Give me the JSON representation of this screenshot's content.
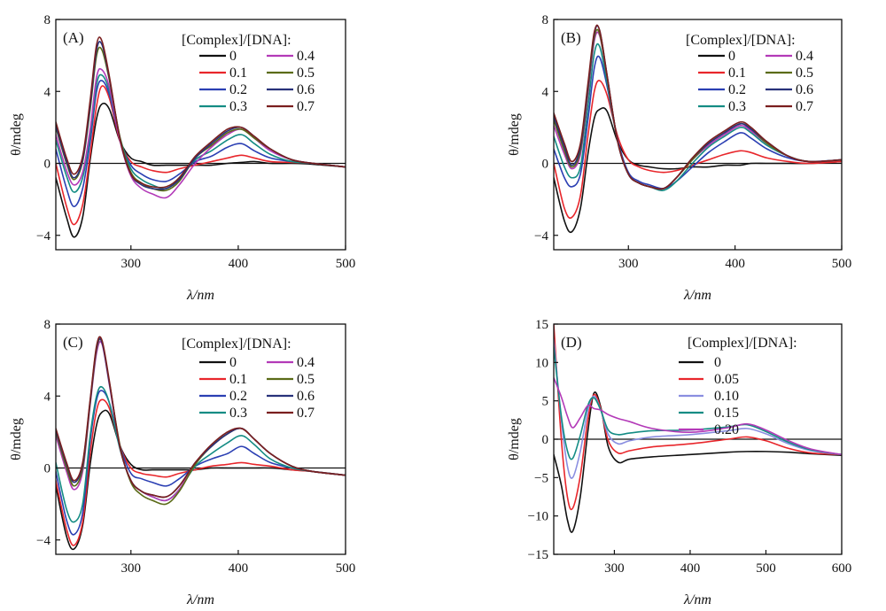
{
  "figure": {
    "ylabel": "θ/mdeg",
    "xlabel": "λ/nm"
  },
  "colors": {
    "0": "#111111",
    "0.1": "#e8262b",
    "0.2": "#2b3fb3",
    "0.3": "#148c84",
    "0.4": "#b33ab8",
    "0.5": "#5b6b18",
    "0.6": "#28327a",
    "0.7": "#7a1f1f",
    "0.05": "#e8262b",
    "0.10": "#8a8ee0",
    "0.15": "#148c84",
    "0.20": "#b33ab8"
  },
  "chart_data": [
    {
      "type": "line",
      "panel_label": "(A)",
      "legend_title": "[Complex]/[DNA]:",
      "xlabel": "λ/nm",
      "ylabel": "θ/mdeg",
      "xlim": [
        230,
        500
      ],
      "ylim": [
        -4.8,
        8
      ],
      "xticks": [
        "300",
        "400",
        "500"
      ],
      "xtick_values": [
        300,
        400,
        500
      ],
      "yticks": [
        "−4",
        "0",
        "4",
        "8"
      ],
      "ytick_values": [
        -4,
        0,
        4,
        8
      ],
      "x": [
        230,
        240,
        247,
        255,
        262,
        268,
        273,
        280,
        290,
        300,
        310,
        320,
        333,
        345,
        360,
        375,
        390,
        403,
        415,
        430,
        450,
        470,
        500
      ],
      "series": [
        {
          "name": "0",
          "values": [
            -0.8,
            -3.0,
            -4.1,
            -3.0,
            0.2,
            2.5,
            3.3,
            3.0,
            1.2,
            0.3,
            0.1,
            -0.1,
            -0.1,
            -0.1,
            -0.1,
            -0.1,
            0.0,
            0.05,
            0.1,
            0.0,
            0.0,
            -0.05,
            -0.2
          ]
        },
        {
          "name": "0.1",
          "values": [
            0.0,
            -2.4,
            -3.4,
            -2.3,
            0.5,
            3.2,
            4.3,
            3.6,
            1.2,
            0.1,
            -0.2,
            -0.4,
            -0.5,
            -0.3,
            -0.1,
            0.1,
            0.3,
            0.45,
            0.3,
            0.1,
            0.05,
            0.0,
            -0.2
          ]
        },
        {
          "name": "0.2",
          "values": [
            0.8,
            -1.4,
            -2.4,
            -1.4,
            1.2,
            4.0,
            4.6,
            3.8,
            1.3,
            -0.1,
            -0.6,
            -0.9,
            -1.0,
            -0.6,
            0.1,
            0.4,
            0.9,
            1.1,
            0.7,
            0.3,
            0.1,
            0.0,
            -0.2
          ]
        },
        {
          "name": "0.3",
          "values": [
            1.3,
            -0.7,
            -1.6,
            -0.8,
            1.6,
            4.4,
            4.9,
            4.0,
            1.4,
            -0.3,
            -0.9,
            -1.2,
            -1.4,
            -0.8,
            0.2,
            0.7,
            1.3,
            1.6,
            1.1,
            0.5,
            0.1,
            0.0,
            -0.2
          ]
        },
        {
          "name": "0.4",
          "values": [
            1.6,
            -0.4,
            -1.2,
            -0.5,
            1.9,
            4.8,
            5.2,
            4.2,
            1.2,
            -0.7,
            -1.4,
            -1.7,
            -1.9,
            -1.2,
            0.0,
            0.9,
            1.6,
            1.9,
            1.4,
            0.7,
            0.2,
            0.0,
            -0.2
          ]
        },
        {
          "name": "0.5",
          "values": [
            2.0,
            0.0,
            -0.9,
            0.1,
            3.0,
            6.0,
            6.3,
            4.6,
            1.4,
            -0.5,
            -1.1,
            -1.4,
            -1.5,
            -1.0,
            0.3,
            1.0,
            1.7,
            1.9,
            1.4,
            0.8,
            0.2,
            0.0,
            -0.2
          ]
        },
        {
          "name": "0.6",
          "values": [
            2.1,
            0.1,
            -0.8,
            0.2,
            3.2,
            6.3,
            6.6,
            4.7,
            1.3,
            -0.6,
            -1.2,
            -1.4,
            -1.4,
            -0.9,
            0.3,
            1.1,
            1.8,
            2.0,
            1.5,
            0.8,
            0.2,
            0.0,
            -0.2
          ]
        },
        {
          "name": "0.7",
          "values": [
            2.3,
            0.3,
            -0.6,
            0.4,
            3.5,
            6.6,
            6.8,
            4.8,
            1.3,
            -0.6,
            -1.1,
            -1.3,
            -1.3,
            -0.8,
            0.4,
            1.2,
            1.9,
            2.0,
            1.5,
            0.8,
            0.2,
            0.0,
            -0.2
          ]
        }
      ]
    },
    {
      "type": "line",
      "panel_label": "(B)",
      "legend_title": "[Complex]/[DNA]:",
      "xlabel": "λ/nm",
      "ylabel": "θ/mdeg",
      "xlim": [
        230,
        500
      ],
      "ylim": [
        -4.8,
        8
      ],
      "xticks": [
        "300",
        "400",
        "500"
      ],
      "xtick_values": [
        300,
        400,
        500
      ],
      "yticks": [
        "−4",
        "0",
        "4",
        "8"
      ],
      "ytick_values": [
        -4,
        0,
        4,
        8
      ],
      "x": [
        230,
        240,
        247,
        255,
        262,
        268,
        273,
        280,
        290,
        300,
        310,
        320,
        333,
        345,
        360,
        375,
        390,
        405,
        415,
        430,
        450,
        470,
        500
      ],
      "series": [
        {
          "name": "0",
          "values": [
            -0.8,
            -3.2,
            -3.8,
            -2.5,
            0.5,
            2.5,
            3.0,
            2.9,
            1.2,
            0.2,
            -0.1,
            -0.2,
            -0.3,
            -0.3,
            -0.2,
            -0.2,
            -0.1,
            -0.1,
            0.0,
            0.0,
            0.0,
            0.0,
            0.1
          ]
        },
        {
          "name": "0.1",
          "values": [
            0.0,
            -2.5,
            -3.0,
            -1.8,
            1.5,
            4.0,
            4.6,
            3.8,
            1.5,
            0.2,
            -0.2,
            -0.4,
            -0.5,
            -0.4,
            -0.1,
            0.2,
            0.5,
            0.7,
            0.6,
            0.3,
            0.1,
            0.0,
            0.1
          ]
        },
        {
          "name": "0.2",
          "values": [
            0.8,
            -0.8,
            -1.3,
            -0.6,
            2.4,
            5.3,
            5.9,
            4.3,
            1.3,
            -0.5,
            -1.0,
            -1.2,
            -1.4,
            -1.0,
            -0.2,
            0.6,
            1.2,
            1.7,
            1.4,
            0.8,
            0.3,
            0.1,
            0.2
          ]
        },
        {
          "name": "0.3",
          "values": [
            1.5,
            -0.2,
            -0.8,
            -0.2,
            3.1,
            6.1,
            6.5,
            4.5,
            1.2,
            -0.6,
            -1.1,
            -1.3,
            -1.5,
            -1.0,
            0.0,
            0.9,
            1.5,
            2.0,
            1.7,
            1.0,
            0.4,
            0.1,
            0.2
          ]
        },
        {
          "name": "0.4",
          "values": [
            2.1,
            0.5,
            -0.3,
            0.5,
            3.8,
            6.8,
            7.1,
            4.8,
            1.2,
            -0.6,
            -1.1,
            -1.3,
            -1.4,
            -0.8,
            0.2,
            1.0,
            1.6,
            2.1,
            1.8,
            1.1,
            0.4,
            0.1,
            0.2
          ]
        },
        {
          "name": "0.5",
          "values": [
            2.4,
            0.7,
            -0.2,
            0.7,
            4.0,
            7.0,
            7.2,
            4.8,
            1.2,
            -0.6,
            -1.1,
            -1.3,
            -1.4,
            -0.8,
            0.2,
            1.1,
            1.7,
            2.2,
            1.9,
            1.1,
            0.4,
            0.1,
            0.2
          ]
        },
        {
          "name": "0.6",
          "values": [
            2.6,
            0.9,
            -0.1,
            0.9,
            4.2,
            7.2,
            7.4,
            4.9,
            1.2,
            -0.6,
            -1.1,
            -1.3,
            -1.4,
            -0.8,
            0.3,
            1.1,
            1.7,
            2.2,
            1.9,
            1.2,
            0.4,
            0.1,
            0.2
          ]
        },
        {
          "name": "0.7",
          "values": [
            2.8,
            1.1,
            0.1,
            1.1,
            4.4,
            7.3,
            7.4,
            4.9,
            1.2,
            -0.6,
            -1.1,
            -1.3,
            -1.4,
            -0.8,
            0.3,
            1.2,
            1.8,
            2.3,
            2.0,
            1.2,
            0.4,
            0.1,
            0.2
          ]
        }
      ]
    },
    {
      "type": "line",
      "panel_label": "(C)",
      "legend_title": "[Complex]/[DNA]:",
      "xlabel": "λ/nm",
      "ylabel": "θ/mdeg",
      "xlim": [
        230,
        500
      ],
      "ylim": [
        -4.8,
        8
      ],
      "xticks": [
        "300",
        "400",
        "500"
      ],
      "xtick_values": [
        300,
        400,
        500
      ],
      "yticks": [
        "−4",
        "0",
        "4",
        "8"
      ],
      "ytick_values": [
        -4,
        0,
        4,
        8
      ],
      "x": [
        230,
        240,
        247,
        255,
        262,
        268,
        273,
        280,
        290,
        300,
        310,
        320,
        333,
        345,
        360,
        375,
        390,
        403,
        415,
        430,
        450,
        470,
        500
      ],
      "series": [
        {
          "name": "0",
          "values": [
            -1.0,
            -3.8,
            -4.5,
            -3.2,
            0.2,
            2.4,
            3.1,
            3.0,
            1.2,
            0.2,
            -0.1,
            -0.1,
            -0.1,
            -0.1,
            -0.1,
            0.0,
            0.0,
            0.0,
            0.0,
            0.0,
            -0.1,
            -0.2,
            -0.4
          ]
        },
        {
          "name": "0.1",
          "values": [
            -0.7,
            -3.4,
            -4.3,
            -3.0,
            0.8,
            3.2,
            3.8,
            3.3,
            1.2,
            0.0,
            -0.3,
            -0.4,
            -0.5,
            -0.3,
            -0.1,
            0.1,
            0.2,
            0.3,
            0.2,
            0.1,
            -0.1,
            -0.2,
            -0.4
          ]
        },
        {
          "name": "0.2",
          "values": [
            -0.2,
            -2.9,
            -3.7,
            -2.5,
            1.5,
            3.8,
            4.3,
            3.6,
            1.2,
            -0.3,
            -0.6,
            -0.8,
            -1.0,
            -0.6,
            0.1,
            0.5,
            0.8,
            1.2,
            0.8,
            0.3,
            0.0,
            -0.2,
            -0.4
          ]
        },
        {
          "name": "0.3",
          "values": [
            0.3,
            -2.3,
            -3.0,
            -2.0,
            1.8,
            4.0,
            4.5,
            3.6,
            1.0,
            -0.7,
            -1.3,
            -1.6,
            -1.8,
            -1.2,
            0.1,
            0.8,
            1.4,
            1.8,
            1.3,
            0.5,
            0.0,
            -0.2,
            -0.4
          ]
        },
        {
          "name": "0.4",
          "values": [
            1.8,
            -0.2,
            -1.2,
            -0.2,
            3.5,
            6.4,
            6.9,
            4.6,
            1.1,
            -0.7,
            -1.3,
            -1.6,
            -1.8,
            -1.2,
            0.3,
            1.2,
            1.9,
            2.2,
            1.6,
            0.8,
            0.1,
            -0.2,
            -0.4
          ]
        },
        {
          "name": "0.5",
          "values": [
            2.0,
            0.0,
            -1.0,
            0.0,
            3.6,
            6.6,
            7.0,
            4.7,
            1.2,
            -0.8,
            -1.5,
            -1.8,
            -2.0,
            -1.3,
            0.2,
            1.2,
            1.9,
            2.2,
            1.6,
            0.8,
            0.1,
            -0.2,
            -0.4
          ]
        },
        {
          "name": "0.6",
          "values": [
            2.1,
            0.2,
            -0.8,
            0.2,
            3.7,
            6.7,
            7.0,
            4.7,
            1.1,
            -0.7,
            -1.3,
            -1.5,
            -1.6,
            -1.0,
            0.3,
            1.2,
            1.9,
            2.2,
            1.6,
            0.8,
            0.1,
            -0.2,
            -0.4
          ]
        },
        {
          "name": "0.7",
          "values": [
            2.2,
            0.3,
            -0.7,
            0.3,
            3.8,
            6.8,
            7.1,
            4.8,
            1.1,
            -0.7,
            -1.3,
            -1.5,
            -1.6,
            -1.0,
            0.3,
            1.3,
            2.0,
            2.2,
            1.6,
            0.8,
            0.1,
            -0.2,
            -0.4
          ]
        }
      ]
    },
    {
      "type": "line",
      "panel_label": "(D)",
      "legend_title": "[Complex]/[DNA]:",
      "xlabel": "λ/nm",
      "ylabel": "θ/mdeg",
      "xlim": [
        220,
        600
      ],
      "ylim": [
        -15,
        15
      ],
      "xticks": [
        "300",
        "400",
        "500",
        "600"
      ],
      "xtick_values": [
        300,
        400,
        500,
        600
      ],
      "yticks": [
        "−15",
        "−10",
        "−5",
        "0",
        "5",
        "10",
        "15"
      ],
      "ytick_values": [
        -15,
        -10,
        -5,
        0,
        5,
        10,
        15
      ],
      "x": [
        220,
        230,
        238,
        245,
        255,
        265,
        273,
        282,
        292,
        305,
        320,
        350,
        400,
        450,
        475,
        500,
        530,
        560,
        600
      ],
      "series": [
        {
          "name": "0",
          "values": [
            -2.0,
            -6.0,
            -10.5,
            -12.0,
            -7.5,
            1.0,
            6.0,
            4.2,
            -1.0,
            -3.0,
            -2.6,
            -2.3,
            -2.0,
            -1.7,
            -1.6,
            -1.6,
            -1.7,
            -1.9,
            -2.1
          ]
        },
        {
          "name": "0.05",
          "values": [
            15.0,
            0.0,
            -7.5,
            -9.0,
            -4.8,
            2.6,
            5.8,
            4.0,
            -0.2,
            -1.8,
            -1.5,
            -1.0,
            -0.6,
            0.0,
            0.3,
            -0.2,
            -1.2,
            -1.8,
            -2.0
          ]
        },
        {
          "name": "0.10",
          "values": [
            13.0,
            2.5,
            -3.5,
            -5.0,
            -1.6,
            3.8,
            5.6,
            3.8,
            0.6,
            -0.6,
            -0.2,
            0.3,
            0.6,
            1.1,
            1.4,
            0.7,
            -0.6,
            -1.5,
            -2.0
          ]
        },
        {
          "name": "0.15",
          "values": [
            12.0,
            3.0,
            -1.5,
            -2.5,
            0.5,
            4.4,
            5.4,
            3.8,
            1.2,
            0.6,
            0.8,
            1.1,
            1.2,
            1.6,
            1.9,
            1.0,
            -0.4,
            -1.4,
            -2.0
          ]
        },
        {
          "name": "0.20",
          "values": [
            8.0,
            5.5,
            3.0,
            1.5,
            2.8,
            4.4,
            4.0,
            3.8,
            3.2,
            2.7,
            2.3,
            1.4,
            0.9,
            1.5,
            2.0,
            1.2,
            -0.2,
            -1.3,
            -2.0
          ]
        }
      ]
    }
  ]
}
